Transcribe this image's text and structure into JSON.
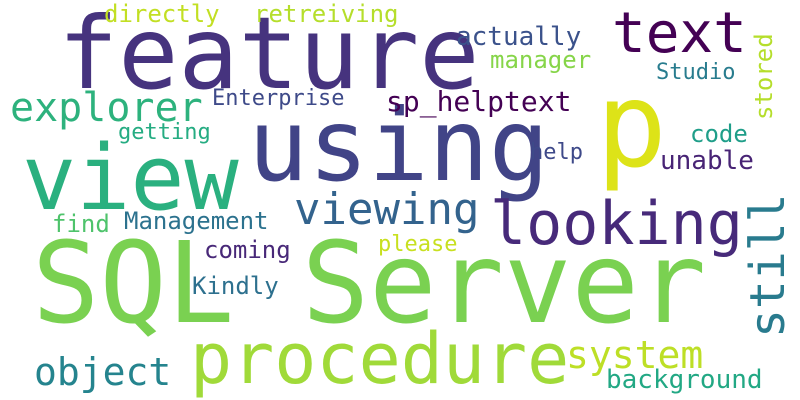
{
  "words": {
    "sql_server": {
      "text": "SQL Server",
      "color": "#7ad151"
    },
    "feature": {
      "text": "feature",
      "color": "#46337e"
    },
    "using": {
      "text": "using",
      "color": "#414487"
    },
    "p": {
      "text": "p",
      "color": "#dde318"
    },
    "view": {
      "text": "view",
      "color": "#2ab07f"
    },
    "procedure": {
      "text": "procedure",
      "color": "#a0da39"
    },
    "looking": {
      "text": "looking",
      "color": "#472a7a"
    },
    "text": {
      "text": "text",
      "color": "#440154"
    },
    "explorer": {
      "text": "explorer",
      "color": "#2db27d"
    },
    "still": {
      "text": "still",
      "color": "#297b8e"
    },
    "viewing": {
      "text": "viewing",
      "color": "#33638d"
    },
    "system": {
      "text": "system",
      "color": "#bddf26"
    },
    "object": {
      "text": "object",
      "color": "#25848e"
    },
    "sp_helptext": {
      "text": "sp_helptext",
      "color": "#440154"
    },
    "directly": {
      "text": "directly",
      "color": "#c2df23"
    },
    "retreiving": {
      "text": "retreiving",
      "color": "#b5de2b"
    },
    "actually": {
      "text": "actually",
      "color": "#3b528b"
    },
    "manager": {
      "text": "manager",
      "color": "#86d549"
    },
    "studio": {
      "text": "Studio",
      "color": "#287c8e"
    },
    "stored": {
      "text": "stored",
      "color": "#b5de2b"
    },
    "enterprise": {
      "text": "Enterprise",
      "color": "#3e4a89"
    },
    "getting": {
      "text": "getting",
      "color": "#25ac82"
    },
    "code": {
      "text": "code",
      "color": "#1f9e89"
    },
    "help": {
      "text": "help",
      "color": "#3e4989"
    },
    "unable": {
      "text": "unable",
      "color": "#482475"
    },
    "find": {
      "text": "find",
      "color": "#4ec36b"
    },
    "management": {
      "text": "Management",
      "color": "#2c728e"
    },
    "coming": {
      "text": "coming",
      "color": "#482878"
    },
    "please": {
      "text": "please",
      "color": "#c8e020"
    },
    "kindly": {
      "text": "Kindly",
      "color": "#2d708e"
    },
    "background": {
      "text": "background",
      "color": "#22a884"
    }
  }
}
